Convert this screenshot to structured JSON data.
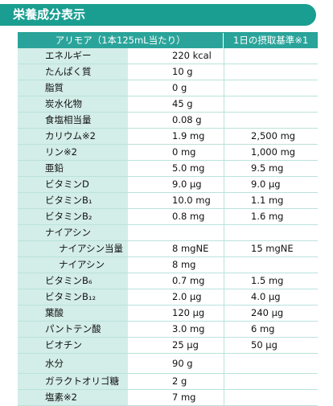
{
  "title": "栄養成分表示",
  "header": {
    "product": "アリモア（1本125mL当たり）",
    "standard": "1日の摂取基準※1"
  },
  "rows": [
    {
      "label": "エネルギー",
      "value": "220 kcal",
      "std": ""
    },
    {
      "label": "たんぱく質",
      "value": "10 g",
      "std": ""
    },
    {
      "label": "脂質",
      "value": "0 g",
      "std": ""
    },
    {
      "label": "炭水化物",
      "value": "45 g",
      "std": ""
    },
    {
      "label": "食塩相当量",
      "value": "0.08 g",
      "std": ""
    },
    {
      "label": "カリウム※2",
      "value": "1.9 mg",
      "std": "2,500 mg"
    },
    {
      "label": "リン※2",
      "value": "0 mg",
      "std": "1,000 mg"
    },
    {
      "label": "亜鉛",
      "value": "5.0 mg",
      "std": "9.5 mg"
    },
    {
      "label": "ビタミンD",
      "value": "9.0 μg",
      "std": "9.0 μg"
    },
    {
      "label": "ビタミンB₁",
      "value": "10.0 mg",
      "std": "1.1 mg"
    },
    {
      "label": "ビタミンB₂",
      "value": "0.8 mg",
      "std": "1.6 mg"
    },
    {
      "label": "ナイアシン",
      "value": "",
      "std": ""
    },
    {
      "label": "ナイアシン当量",
      "value": "8 mgNE",
      "std": "15 mgNE",
      "indent": true
    },
    {
      "label": "ナイアシン",
      "value": "8 mg",
      "std": "",
      "indent": true
    },
    {
      "label": "ビタミンB₆",
      "value": "0.7 mg",
      "std": "1.5 mg"
    },
    {
      "label": "ビタミンB₁₂",
      "value": "2.0 μg",
      "std": "4.0 μg"
    },
    {
      "label": "葉酸",
      "value": "120 μg",
      "std": "240 μg"
    },
    {
      "label": "パントテン酸",
      "value": "3.0 mg",
      "std": "6 mg"
    },
    {
      "label": "ビオチン",
      "value": "25 μg",
      "std": "50 μg"
    },
    {
      "label": "水分",
      "value": "90 g",
      "std": "",
      "tall": true
    },
    {
      "label": "ガラクトオリゴ糖",
      "value": "2 g",
      "std": ""
    },
    {
      "label": "塩素※2",
      "value": "7 mg",
      "std": ""
    }
  ],
  "colors": {
    "accent": "#1a9e91",
    "header_bg": "#2aa49a",
    "label_bg": "#d3ede8",
    "rule": "#b9e3db"
  }
}
